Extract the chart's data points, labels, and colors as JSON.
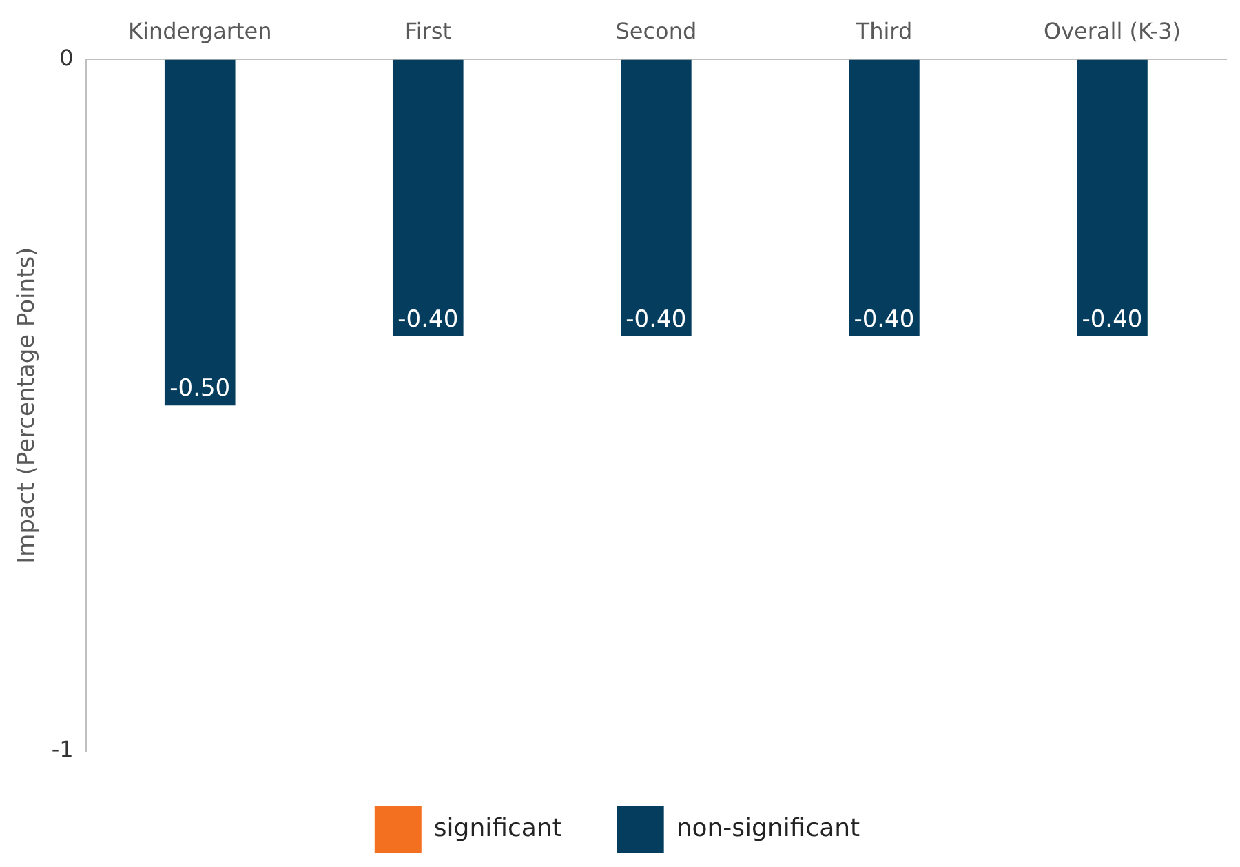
{
  "chart_data": {
    "type": "bar",
    "ylabel": "Impact (Percentage Points)",
    "categories": [
      "Kindergarten",
      "First",
      "Second",
      "Third",
      "Overall (K-3)"
    ],
    "series": [
      {
        "name": "significant",
        "color": "#f37021",
        "values": [
          null,
          null,
          null,
          null,
          null
        ]
      },
      {
        "name": "non-significant",
        "color": "#043d5d",
        "values": [
          -0.5,
          -0.4,
          -0.4,
          -0.4,
          -0.4
        ],
        "value_labels": [
          "-0.50",
          "-0.40",
          "-0.40",
          "-0.40",
          "-0.40"
        ]
      }
    ],
    "ylim": [
      -1,
      0
    ],
    "yticks": [
      -1,
      0
    ],
    "grid": false,
    "legend": "bottom"
  }
}
